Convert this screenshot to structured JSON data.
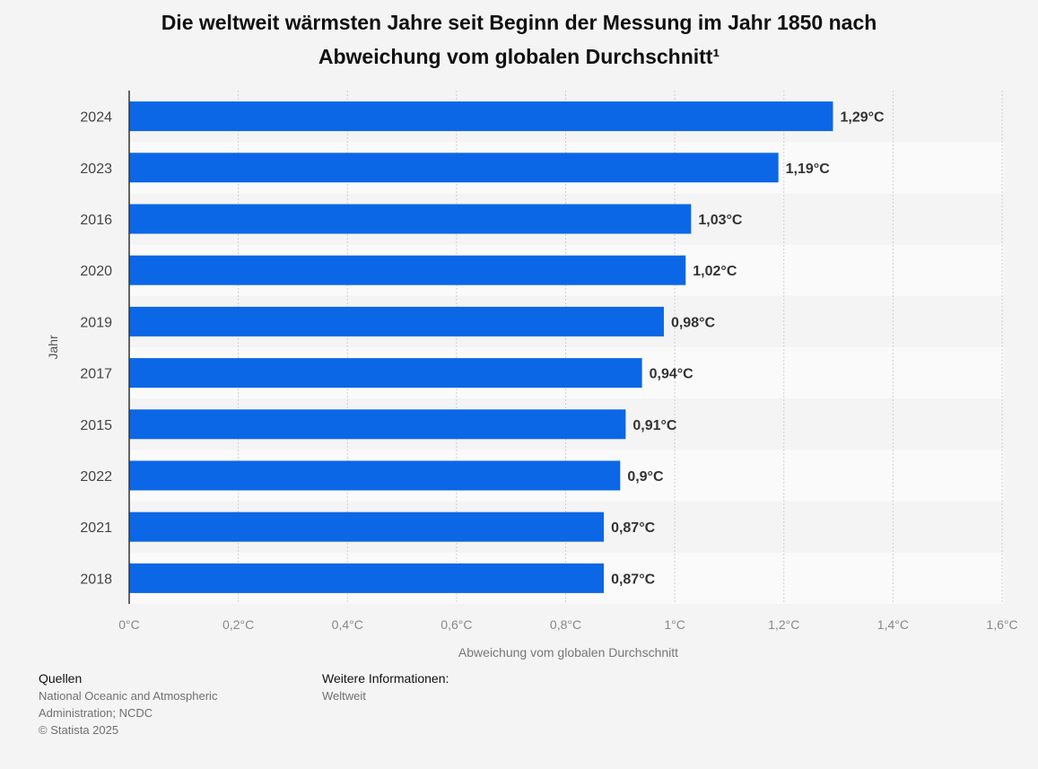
{
  "title": {
    "line1": "Die weltweit wärmsten Jahre seit Beginn der Messung im Jahr 1850 nach",
    "line2": "Abweichung vom globalen Durchschnitt¹"
  },
  "chart_data": {
    "type": "bar",
    "orientation": "horizontal",
    "categories": [
      "2024",
      "2023",
      "2016",
      "2020",
      "2019",
      "2017",
      "2015",
      "2022",
      "2021",
      "2018"
    ],
    "values": [
      1.29,
      1.19,
      1.03,
      1.02,
      0.98,
      0.94,
      0.91,
      0.9,
      0.87,
      0.87
    ],
    "value_labels": [
      "1,29°C",
      "1,19°C",
      "1,03°C",
      "1,02°C",
      "0,98°C",
      "0,94°C",
      "0,91°C",
      "0,9°C",
      "0,87°C",
      "0,87°C"
    ],
    "xlabel": "Abweichung vom globalen Durchschnitt",
    "ylabel": "Jahr",
    "xlim": [
      0,
      1.6
    ],
    "x_ticks": [
      0,
      0.2,
      0.4,
      0.6,
      0.8,
      1.0,
      1.2,
      1.4,
      1.6
    ],
    "x_tick_labels": [
      "0°C",
      "0,2°C",
      "0,4°C",
      "0,6°C",
      "0,8°C",
      "1°C",
      "1,2°C",
      "1,4°C",
      "1,6°C"
    ],
    "grid": true,
    "legend": "none",
    "bar_color": "#0b67e6"
  },
  "footer": {
    "sources_heading": "Quellen",
    "sources_line1": "National Oceanic and Atmospheric",
    "sources_line2": "Administration; NCDC",
    "copyright": "© Statista 2025",
    "info_heading": "Weitere Informationen:",
    "info_text": "Weltweit"
  }
}
